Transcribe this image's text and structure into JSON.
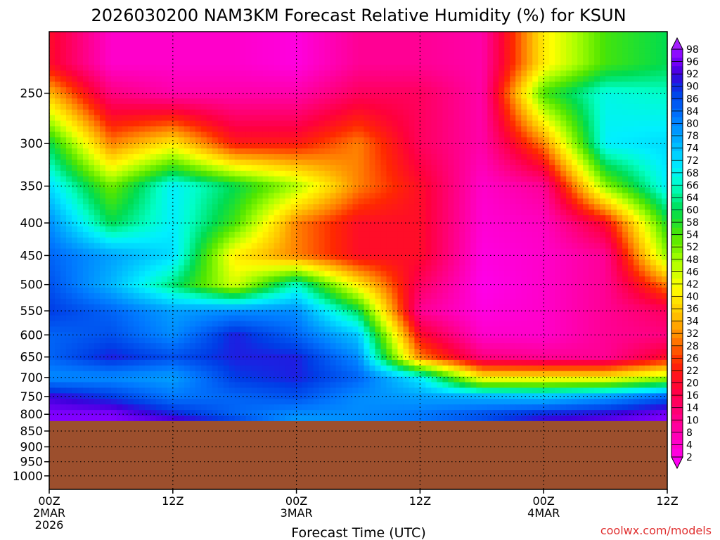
{
  "chart_data": {
    "type": "heatmap",
    "title": "2026030200 NAM3KM Forecast Relative Humidity (%) for KSUN",
    "xlabel": "Forecast Time (UTC)",
    "ylabel": "",
    "x_ticks": [
      {
        "hour": 0,
        "lines": [
          "00Z",
          "2MAR",
          "2026"
        ]
      },
      {
        "hour": 12,
        "lines": [
          "12Z"
        ]
      },
      {
        "hour": 24,
        "lines": [
          "00Z",
          "3MAR"
        ]
      },
      {
        "hour": 36,
        "lines": [
          "12Z"
        ]
      },
      {
        "hour": 48,
        "lines": [
          "00Z",
          "4MAR"
        ]
      },
      {
        "hour": 60,
        "lines": [
          "12Z"
        ]
      }
    ],
    "xlim": [
      0,
      60
    ],
    "y_ticks": [
      250,
      300,
      350,
      400,
      450,
      500,
      550,
      600,
      650,
      700,
      750,
      800,
      850,
      900,
      950,
      1000
    ],
    "ylim": [
      1050,
      200
    ],
    "y_scale": "log-pressure",
    "surface_pressure": 820,
    "terrain_color": "#9c4f2d",
    "grid": true,
    "colorbar": {
      "location": "right",
      "labels": [
        98,
        96,
        92,
        90,
        86,
        84,
        80,
        78,
        74,
        72,
        68,
        66,
        64,
        60,
        58,
        54,
        52,
        48,
        46,
        42,
        40,
        36,
        34,
        32,
        28,
        26,
        22,
        20,
        16,
        14,
        10,
        8,
        4,
        2
      ],
      "colormap": "magenta-red-orange-yellow-green-cyan-blue-purple"
    },
    "grid_hours": [
      0,
      6,
      12,
      18,
      24,
      30,
      36,
      42,
      48,
      54,
      60
    ],
    "grid_levels": [
      225,
      250,
      300,
      350,
      400,
      450,
      500,
      550,
      600,
      650,
      700,
      750,
      800,
      820
    ],
    "values": [
      [
        20,
        5,
        5,
        5,
        3,
        10,
        10,
        8,
        40,
        55,
        60
      ],
      [
        35,
        12,
        8,
        8,
        8,
        15,
        15,
        8,
        55,
        68,
        66
      ],
      [
        60,
        30,
        40,
        22,
        22,
        30,
        15,
        8,
        30,
        70,
        72
      ],
      [
        72,
        52,
        70,
        60,
        48,
        30,
        20,
        5,
        10,
        50,
        70
      ],
      [
        80,
        60,
        70,
        55,
        30,
        20,
        20,
        4,
        6,
        20,
        58
      ],
      [
        84,
        78,
        72,
        40,
        30,
        20,
        20,
        3,
        5,
        10,
        50
      ],
      [
        86,
        76,
        62,
        45,
        66,
        40,
        15,
        2,
        5,
        10,
        30
      ],
      [
        88,
        84,
        78,
        80,
        80,
        60,
        10,
        3,
        5,
        10,
        15
      ],
      [
        84,
        86,
        80,
        90,
        84,
        74,
        20,
        5,
        5,
        10,
        12
      ],
      [
        84,
        90,
        86,
        90,
        90,
        80,
        30,
        12,
        10,
        10,
        20
      ],
      [
        80,
        80,
        78,
        88,
        90,
        84,
        70,
        40,
        40,
        40,
        48
      ],
      [
        92,
        88,
        82,
        84,
        86,
        80,
        78,
        76,
        74,
        78,
        84
      ],
      [
        96,
        96,
        90,
        84,
        80,
        80,
        82,
        86,
        90,
        92,
        96
      ],
      [
        96,
        96,
        94,
        88,
        78,
        80,
        82,
        86,
        92,
        94,
        96
      ]
    ]
  },
  "watermark": "coolwx.com/models"
}
